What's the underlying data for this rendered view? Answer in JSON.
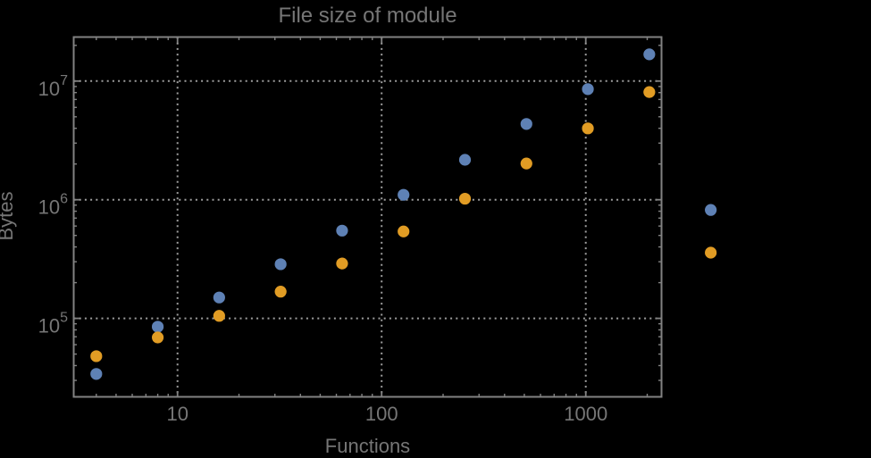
{
  "chart_data": {
    "type": "scatter",
    "title": "File size of module",
    "xlabel": "Functions",
    "ylabel": "Bytes",
    "x_scale": "log",
    "y_scale": "log",
    "grid": "dotted",
    "legend": "none",
    "xlim": [
      3.1,
      2350
    ],
    "ylim": [
      21800,
      23500000
    ],
    "x_ticks_labeled": [
      10,
      100,
      1000
    ],
    "y_ticks_labeled": [
      100000,
      1000000,
      10000000
    ],
    "x": [
      4,
      8,
      16,
      32,
      64,
      128,
      256,
      512,
      1024,
      2048,
      4096
    ],
    "series": [
      {
        "name": "series-1-blue",
        "color": "#5E81B5",
        "y": [
          34000,
          85000,
          150000,
          286000,
          549000,
          1100000,
          2170000,
          4350000,
          8550000,
          16800000,
          820000
        ]
      },
      {
        "name": "series-2-orange",
        "color": "#E19C24",
        "y": [
          48000,
          69000,
          105000,
          168000,
          290000,
          540000,
          1020000,
          2020000,
          3990000,
          8080000,
          358000
        ]
      }
    ],
    "colors": {
      "background": "#000000",
      "frame": "#828282",
      "gridline": "#9E9E9E",
      "text": "#767676"
    }
  }
}
